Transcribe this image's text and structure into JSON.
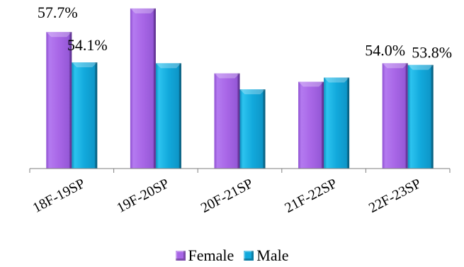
{
  "chart_data": {
    "type": "bar",
    "categories": [
      "18F-19SP",
      "19F-20SP",
      "20F-21SP",
      "21F-22SP",
      "22F-23SP"
    ],
    "series": [
      {
        "name": "Female",
        "color": "#a866e6",
        "values": [
          57.7,
          60.5,
          52.8,
          51.8,
          54.0
        ],
        "labels": [
          "57.7%",
          "",
          "",
          "",
          "54.0%"
        ]
      },
      {
        "name": "Male",
        "color": "#12a9dc",
        "values": [
          54.1,
          54.0,
          50.9,
          52.3,
          53.8
        ],
        "labels": [
          "54.1%",
          "",
          "",
          "",
          "53.8%"
        ]
      }
    ],
    "title": "",
    "xlabel": "",
    "ylabel": "",
    "ylim": [
      41.5,
      61.5
    ],
    "grid": false,
    "legend_position": "bottom"
  }
}
